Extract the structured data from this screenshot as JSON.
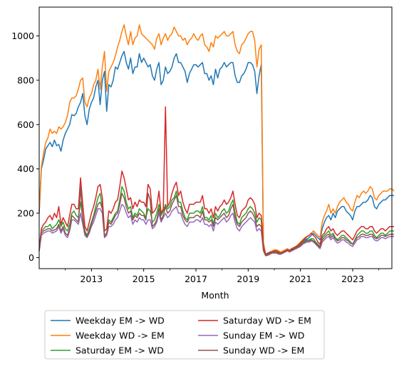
{
  "chart_data": {
    "type": "line",
    "xlabel": "Month",
    "ylabel": "",
    "title": "",
    "x_start": "2011-01",
    "x_end": "2024-07",
    "xlim": [
      "2011-01",
      "2024-07"
    ],
    "ylim": [
      -50,
      1130
    ],
    "x_tick_labels": [
      "2013",
      "2015",
      "2017",
      "2019",
      "2021",
      "2023"
    ],
    "y_tick_labels": [
      "0",
      "200",
      "400",
      "600",
      "800",
      "1000"
    ],
    "legend_position": "below-plot",
    "legend_columns": 2,
    "grid": false,
    "series": [
      {
        "name": "Weekday EM -> WD",
        "color": "#1f77b4",
        "values": [
          200,
          400,
          440,
          490,
          505,
          520,
          500,
          530,
          505,
          510,
          480,
          530,
          560,
          580,
          600,
          645,
          640,
          650,
          680,
          700,
          740,
          640,
          600,
          670,
          700,
          720,
          770,
          800,
          690,
          800,
          840,
          660,
          780,
          770,
          800,
          860,
          850,
          880,
          910,
          930,
          880,
          850,
          900,
          830,
          860,
          860,
          920,
          880,
          900,
          880,
          860,
          870,
          820,
          800,
          850,
          880,
          780,
          800,
          860,
          830,
          840,
          860,
          900,
          920,
          880,
          880,
          860,
          840,
          790,
          830,
          850,
          870,
          870,
          860,
          870,
          880,
          830,
          830,
          800,
          820,
          780,
          850,
          810,
          850,
          860,
          880,
          860,
          870,
          880,
          880,
          820,
          790,
          790,
          820,
          830,
          850,
          880,
          880,
          870,
          840,
          740,
          820,
          870,
          60,
          10,
          15,
          20,
          25,
          30,
          30,
          25,
          20,
          25,
          30,
          35,
          30,
          35,
          40,
          45,
          50,
          60,
          70,
          80,
          85,
          90,
          100,
          110,
          100,
          90,
          80,
          130,
          160,
          180,
          190,
          170,
          200,
          180,
          210,
          220,
          230,
          230,
          210,
          200,
          190,
          170,
          210,
          230,
          230,
          240,
          250,
          250,
          260,
          280,
          270,
          230,
          220,
          240,
          250,
          260,
          260,
          270,
          280,
          280,
          280
        ]
      },
      {
        "name": "Weekday WD -> EM",
        "color": "#ff7f0e",
        "values": [
          210,
          410,
          470,
          520,
          540,
          580,
          560,
          570,
          560,
          590,
          580,
          590,
          610,
          640,
          700,
          720,
          720,
          730,
          760,
          800,
          810,
          700,
          680,
          720,
          740,
          780,
          800,
          850,
          760,
          860,
          930,
          750,
          840,
          860,
          880,
          910,
          950,
          980,
          1020,
          1050,
          1000,
          960,
          1020,
          960,
          990,
          1000,
          1050,
          1010,
          1000,
          990,
          980,
          970,
          960,
          940,
          990,
          1010,
          960,
          990,
          1010,
          980,
          1000,
          1010,
          1040,
          1020,
          1000,
          1000,
          980,
          990,
          960,
          980,
          990,
          1010,
          990,
          980,
          1000,
          1010,
          960,
          950,
          930,
          970,
          950,
          1000,
          990,
          1000,
          1010,
          1020,
          1000,
          1000,
          1010,
          1020,
          960,
          930,
          920,
          960,
          970,
          990,
          1010,
          1020,
          1020,
          980,
          860,
          940,
          960,
          70,
          15,
          20,
          25,
          30,
          35,
          35,
          30,
          25,
          30,
          35,
          40,
          35,
          40,
          45,
          50,
          60,
          70,
          80,
          90,
          95,
          100,
          110,
          120,
          110,
          100,
          90,
          160,
          190,
          210,
          240,
          200,
          220,
          200,
          230,
          250,
          260,
          270,
          250,
          240,
          220,
          210,
          250,
          280,
          270,
          290,
          300,
          290,
          300,
          320,
          310,
          270,
          260,
          280,
          290,
          300,
          300,
          300,
          310,
          310,
          300
        ]
      },
      {
        "name": "Saturday EM -> WD",
        "color": "#2ca02c",
        "values": [
          30,
          120,
          130,
          140,
          140,
          150,
          130,
          140,
          150,
          170,
          140,
          160,
          130,
          120,
          150,
          200,
          210,
          190,
          180,
          250,
          180,
          120,
          100,
          130,
          160,
          190,
          230,
          270,
          290,
          230,
          100,
          110,
          170,
          160,
          180,
          200,
          210,
          260,
          320,
          300,
          250,
          220,
          230,
          180,
          200,
          190,
          220,
          210,
          200,
          180,
          220,
          210,
          160,
          170,
          200,
          240,
          190,
          210,
          240,
          220,
          230,
          260,
          270,
          300,
          250,
          250,
          210,
          180,
          170,
          200,
          200,
          200,
          210,
          210,
          200,
          230,
          180,
          180,
          170,
          190,
          150,
          200,
          180,
          190,
          210,
          220,
          200,
          210,
          240,
          260,
          200,
          160,
          150,
          180,
          190,
          200,
          220,
          230,
          220,
          200,
          160,
          180,
          170,
          40,
          10,
          15,
          20,
          25,
          25,
          25,
          20,
          20,
          25,
          30,
          35,
          30,
          35,
          40,
          45,
          50,
          60,
          70,
          75,
          80,
          80,
          85,
          85,
          70,
          60,
          50,
          90,
          100,
          110,
          120,
          100,
          110,
          90,
          80,
          90,
          100,
          100,
          90,
          80,
          70,
          60,
          80,
          100,
          110,
          120,
          120,
          110,
          110,
          120,
          120,
          100,
          90,
          100,
          110,
          110,
          100,
          110,
          120,
          120,
          120
        ]
      },
      {
        "name": "Saturday WD -> EM",
        "color": "#d62728",
        "values": [
          40,
          130,
          150,
          160,
          180,
          190,
          170,
          200,
          180,
          230,
          150,
          180,
          160,
          140,
          190,
          240,
          240,
          220,
          220,
          360,
          240,
          140,
          120,
          160,
          200,
          230,
          270,
          320,
          330,
          270,
          120,
          130,
          210,
          200,
          220,
          250,
          260,
          320,
          390,
          360,
          310,
          260,
          270,
          220,
          250,
          230,
          260,
          250,
          250,
          230,
          330,
          310,
          200,
          210,
          230,
          300,
          200,
          220,
          680,
          230,
          250,
          290,
          320,
          340,
          280,
          300,
          250,
          220,
          200,
          240,
          240,
          240,
          250,
          250,
          250,
          280,
          220,
          220,
          200,
          220,
          180,
          230,
          210,
          230,
          240,
          260,
          240,
          250,
          270,
          300,
          240,
          190,
          180,
          210,
          220,
          230,
          260,
          270,
          260,
          240,
          180,
          200,
          190,
          50,
          15,
          20,
          25,
          25,
          30,
          30,
          25,
          20,
          25,
          30,
          35,
          30,
          40,
          45,
          50,
          55,
          65,
          75,
          85,
          95,
          100,
          110,
          100,
          90,
          70,
          60,
          100,
          110,
          130,
          140,
          120,
          130,
          110,
          100,
          110,
          120,
          120,
          110,
          100,
          90,
          80,
          100,
          120,
          130,
          140,
          140,
          130,
          130,
          140,
          140,
          120,
          110,
          120,
          130,
          130,
          120,
          130,
          140,
          140,
          140
        ]
      },
      {
        "name": "Sunday EM -> WD",
        "color": "#9467bd",
        "values": [
          30,
          100,
          110,
          115,
          120,
          120,
          110,
          115,
          120,
          140,
          110,
          130,
          100,
          90,
          120,
          170,
          170,
          160,
          150,
          200,
          150,
          100,
          90,
          110,
          140,
          160,
          190,
          220,
          220,
          200,
          90,
          100,
          140,
          140,
          150,
          170,
          180,
          210,
          240,
          230,
          200,
          180,
          190,
          150,
          170,
          160,
          180,
          170,
          170,
          150,
          170,
          170,
          130,
          140,
          160,
          200,
          160,
          180,
          200,
          180,
          190,
          210,
          220,
          230,
          200,
          200,
          170,
          150,
          140,
          160,
          160,
          160,
          170,
          170,
          160,
          180,
          150,
          150,
          140,
          150,
          120,
          160,
          150,
          160,
          170,
          180,
          160,
          170,
          190,
          200,
          160,
          130,
          120,
          140,
          150,
          160,
          170,
          180,
          170,
          160,
          120,
          130,
          120,
          30,
          8,
          10,
          15,
          20,
          20,
          20,
          15,
          15,
          20,
          25,
          30,
          25,
          30,
          35,
          40,
          45,
          50,
          60,
          65,
          70,
          70,
          75,
          70,
          60,
          50,
          40,
          70,
          80,
          90,
          95,
          80,
          90,
          75,
          65,
          70,
          80,
          80,
          70,
          65,
          55,
          50,
          65,
          80,
          85,
          95,
          95,
          90,
          90,
          95,
          95,
          80,
          75,
          80,
          90,
          90,
          85,
          90,
          95,
          95,
          95
        ]
      },
      {
        "name": "Sunday WD -> EM",
        "color": "#8c564b",
        "values": [
          30,
          110,
          120,
          125,
          130,
          130,
          120,
          125,
          130,
          150,
          120,
          140,
          110,
          100,
          130,
          190,
          180,
          170,
          160,
          320,
          170,
          110,
          95,
          120,
          150,
          180,
          210,
          240,
          250,
          220,
          95,
          110,
          160,
          150,
          170,
          190,
          200,
          240,
          290,
          270,
          230,
          200,
          210,
          170,
          190,
          180,
          200,
          190,
          190,
          170,
          290,
          260,
          140,
          150,
          170,
          220,
          170,
          190,
          230,
          200,
          210,
          240,
          260,
          280,
          230,
          230,
          190,
          170,
          160,
          180,
          180,
          180,
          190,
          190,
          180,
          210,
          170,
          170,
          160,
          170,
          140,
          180,
          170,
          180,
          190,
          200,
          180,
          190,
          220,
          240,
          180,
          150,
          140,
          160,
          170,
          180,
          200,
          210,
          200,
          180,
          140,
          150,
          140,
          35,
          10,
          12,
          18,
          22,
          22,
          22,
          18,
          18,
          22,
          27,
          32,
          28,
          33,
          38,
          43,
          48,
          55,
          65,
          70,
          75,
          75,
          80,
          75,
          65,
          55,
          45,
          80,
          90,
          100,
          105,
          90,
          100,
          85,
          75,
          80,
          90,
          90,
          80,
          75,
          65,
          60,
          75,
          90,
          95,
          105,
          105,
          100,
          100,
          105,
          105,
          90,
          85,
          90,
          100,
          100,
          95,
          100,
          105,
          105,
          105
        ]
      }
    ]
  }
}
